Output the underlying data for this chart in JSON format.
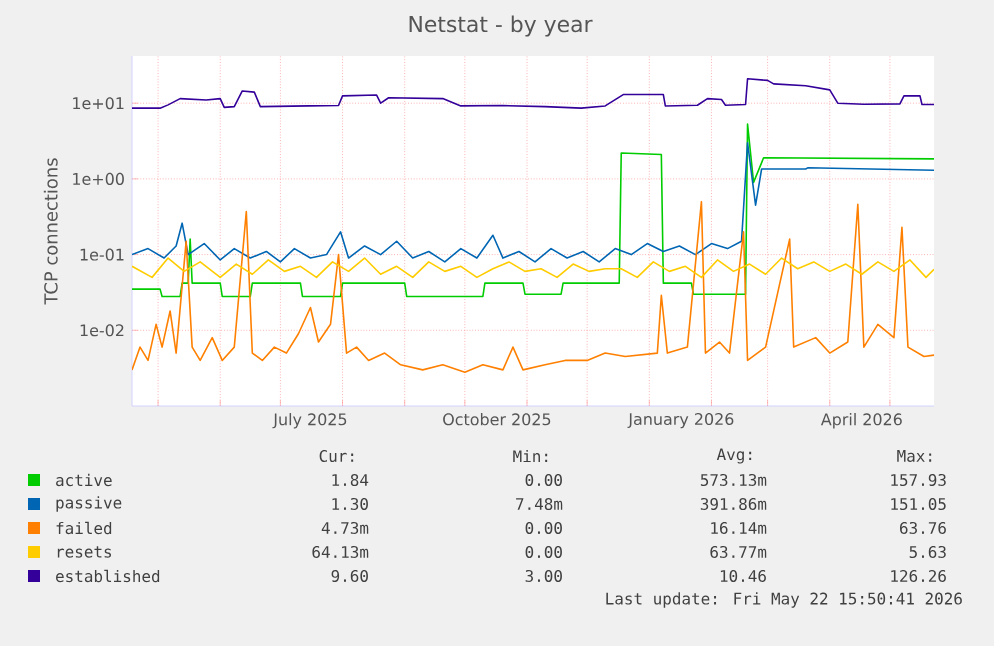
{
  "chart_data": {
    "type": "line",
    "title": "Netstat - by year",
    "ylabel": "TCP connections",
    "log": "y",
    "grid": true,
    "legend": "bottom",
    "xlim": [
      "2025-04-18",
      "2026-05-23"
    ],
    "xticks": [
      {
        "value": "2025-05-01",
        "label": null
      },
      {
        "value": "2025-06-01",
        "label": null
      },
      {
        "value": "2025-07-01",
        "label": null
      },
      {
        "value": "2025-08-01",
        "label": null
      },
      {
        "value": "2025-09-01",
        "label": null
      },
      {
        "value": "2025-10-01",
        "label": null
      },
      {
        "value": "2025-11-01",
        "label": null
      },
      {
        "value": "2025-12-01",
        "label": null
      },
      {
        "value": "2026-01-01",
        "label": null
      },
      {
        "value": "2026-02-01",
        "label": null
      },
      {
        "value": "2026-03-01",
        "label": null
      },
      {
        "value": "2026-04-01",
        "label": null
      },
      {
        "value": "2026-05-01",
        "label": null
      },
      {
        "value": "2025-07-16",
        "label": "July 2025"
      },
      {
        "value": "2025-10-17",
        "label": "October 2025"
      },
      {
        "value": "2026-01-17",
        "label": "January 2026"
      },
      {
        "value": "2026-04-17",
        "label": "April 2026"
      }
    ],
    "ylim": [
      0.001,
      42
    ],
    "yticks": [
      {
        "value": 0.01,
        "label": "1e-02"
      },
      {
        "value": 0.1,
        "label": "1e-01"
      },
      {
        "value": 1,
        "label": "1e+00"
      },
      {
        "value": 10,
        "label": "1e+01"
      }
    ],
    "series": [
      {
        "name": "active",
        "color": "#00cc00",
        "x": [
          "2025-04-18",
          "2025-05-02",
          "2025-05-03",
          "2025-05-12",
          "2025-05-13",
          "2025-05-16",
          "2025-05-17",
          "2025-05-18",
          "2025-06-01",
          "2025-06-02",
          "2025-06-16",
          "2025-06-17",
          "2025-07-11",
          "2025-07-12",
          "2025-07-31",
          "2025-08-01",
          "2025-09-01",
          "2025-09-02",
          "2025-10-10",
          "2025-10-11",
          "2025-10-30",
          "2025-10-31",
          "2025-11-18",
          "2025-11-19",
          "2025-12-17",
          "2025-12-18",
          "2026-01-07",
          "2026-01-08",
          "2026-01-22",
          "2026-01-23",
          "2026-02-18",
          "2026-02-19",
          "2026-02-22",
          "2026-02-27",
          "2026-05-23"
        ],
        "values": [
          0.035,
          0.035,
          0.028,
          0.028,
          0.042,
          0.042,
          0.16,
          0.042,
          0.042,
          0.028,
          0.028,
          0.042,
          0.042,
          0.028,
          0.028,
          0.042,
          0.042,
          0.028,
          0.028,
          0.042,
          0.042,
          0.03,
          0.03,
          0.042,
          0.042,
          2.2,
          2.1,
          0.042,
          0.042,
          0.03,
          0.03,
          5.3,
          0.9,
          1.9,
          1.84
        ]
      },
      {
        "name": "passive",
        "color": "#0066b3",
        "x": [
          "2025-04-18",
          "2025-04-26",
          "2025-05-04",
          "2025-05-10",
          "2025-05-13",
          "2025-05-16",
          "2025-05-24",
          "2025-06-01",
          "2025-06-08",
          "2025-06-16",
          "2025-06-24",
          "2025-07-01",
          "2025-07-08",
          "2025-07-16",
          "2025-07-24",
          "2025-07-31",
          "2025-08-04",
          "2025-08-12",
          "2025-08-20",
          "2025-08-28",
          "2025-09-05",
          "2025-09-13",
          "2025-09-21",
          "2025-09-29",
          "2025-10-07",
          "2025-10-15",
          "2025-10-20",
          "2025-10-28",
          "2025-11-05",
          "2025-11-13",
          "2025-11-21",
          "2025-11-29",
          "2025-12-07",
          "2025-12-15",
          "2025-12-23",
          "2025-12-31",
          "2026-01-08",
          "2026-01-16",
          "2026-01-24",
          "2026-02-01",
          "2026-02-09",
          "2026-02-16",
          "2026-02-19",
          "2026-02-23",
          "2026-02-26",
          "2026-03-20",
          "2026-03-21",
          "2026-05-23"
        ],
        "values": [
          0.1,
          0.12,
          0.09,
          0.13,
          0.26,
          0.1,
          0.14,
          0.085,
          0.12,
          0.09,
          0.11,
          0.08,
          0.12,
          0.09,
          0.1,
          0.2,
          0.09,
          0.13,
          0.1,
          0.15,
          0.09,
          0.11,
          0.08,
          0.12,
          0.09,
          0.18,
          0.09,
          0.11,
          0.08,
          0.12,
          0.09,
          0.11,
          0.08,
          0.12,
          0.1,
          0.14,
          0.11,
          0.13,
          0.1,
          0.14,
          0.12,
          0.15,
          3.0,
          0.45,
          1.35,
          1.35,
          1.4,
          1.3
        ]
      },
      {
        "name": "failed",
        "color": "#ff8000",
        "x": [
          "2025-04-18",
          "2025-04-22",
          "2025-04-26",
          "2025-04-30",
          "2025-05-03",
          "2025-05-07",
          "2025-05-10",
          "2025-05-15",
          "2025-05-18",
          "2025-05-22",
          "2025-05-28",
          "2025-06-02",
          "2025-06-08",
          "2025-06-14",
          "2025-06-17",
          "2025-06-22",
          "2025-06-28",
          "2025-07-04",
          "2025-07-10",
          "2025-07-16",
          "2025-07-20",
          "2025-07-26",
          "2025-07-30",
          "2025-08-03",
          "2025-08-08",
          "2025-08-14",
          "2025-08-22",
          "2025-08-30",
          "2025-09-10",
          "2025-09-20",
          "2025-10-01",
          "2025-10-10",
          "2025-10-20",
          "2025-10-25",
          "2025-10-30",
          "2025-11-10",
          "2025-11-20",
          "2025-12-01",
          "2025-12-10",
          "2025-12-20",
          "2026-01-05",
          "2026-01-07",
          "2026-01-10",
          "2026-01-20",
          "2026-01-27",
          "2026-01-29",
          "2026-02-05",
          "2026-02-10",
          "2026-02-17",
          "2026-02-19",
          "2026-02-28",
          "2026-03-12",
          "2026-03-14",
          "2026-03-25",
          "2026-04-01",
          "2026-04-10",
          "2026-04-15",
          "2026-04-18",
          "2026-04-25",
          "2026-05-03",
          "2026-05-07",
          "2026-05-10",
          "2026-05-18",
          "2026-05-23"
        ],
        "values": [
          0.003,
          0.006,
          0.004,
          0.012,
          0.006,
          0.018,
          0.005,
          0.15,
          0.006,
          0.004,
          0.008,
          0.004,
          0.006,
          0.37,
          0.005,
          0.004,
          0.006,
          0.005,
          0.009,
          0.02,
          0.007,
          0.012,
          0.1,
          0.005,
          0.006,
          0.004,
          0.005,
          0.0035,
          0.003,
          0.0035,
          0.0028,
          0.0035,
          0.003,
          0.006,
          0.003,
          0.0035,
          0.004,
          0.004,
          0.005,
          0.0045,
          0.005,
          0.029,
          0.005,
          0.006,
          0.5,
          0.005,
          0.007,
          0.005,
          0.2,
          0.004,
          0.006,
          0.16,
          0.006,
          0.008,
          0.005,
          0.007,
          0.46,
          0.006,
          0.012,
          0.008,
          0.23,
          0.006,
          0.0045,
          0.0047
        ]
      },
      {
        "name": "resets",
        "color": "#ffcc00",
        "x": [
          "2025-04-18",
          "2025-04-28",
          "2025-05-06",
          "2025-05-14",
          "2025-05-22",
          "2025-06-01",
          "2025-06-09",
          "2025-06-17",
          "2025-06-25",
          "2025-07-03",
          "2025-07-11",
          "2025-07-19",
          "2025-07-27",
          "2025-08-04",
          "2025-08-12",
          "2025-08-20",
          "2025-08-28",
          "2025-09-05",
          "2025-09-13",
          "2025-09-21",
          "2025-09-29",
          "2025-10-07",
          "2025-10-15",
          "2025-10-23",
          "2025-10-31",
          "2025-11-08",
          "2025-11-16",
          "2025-11-24",
          "2025-12-02",
          "2025-12-10",
          "2025-12-18",
          "2025-12-26",
          "2026-01-03",
          "2026-01-11",
          "2026-01-19",
          "2026-01-27",
          "2026-02-04",
          "2026-02-12",
          "2026-02-20",
          "2026-02-28",
          "2026-03-08",
          "2026-03-16",
          "2026-03-24",
          "2026-04-01",
          "2026-04-09",
          "2026-04-17",
          "2026-04-25",
          "2026-05-03",
          "2026-05-11",
          "2026-05-19",
          "2026-05-23"
        ],
        "values": [
          0.07,
          0.05,
          0.09,
          0.06,
          0.08,
          0.05,
          0.075,
          0.055,
          0.085,
          0.06,
          0.07,
          0.05,
          0.08,
          0.06,
          0.09,
          0.055,
          0.07,
          0.05,
          0.08,
          0.06,
          0.07,
          0.05,
          0.065,
          0.08,
          0.06,
          0.065,
          0.05,
          0.075,
          0.06,
          0.065,
          0.065,
          0.05,
          0.08,
          0.06,
          0.07,
          0.05,
          0.085,
          0.06,
          0.075,
          0.055,
          0.09,
          0.065,
          0.08,
          0.06,
          0.075,
          0.055,
          0.08,
          0.06,
          0.085,
          0.05,
          0.064
        ]
      },
      {
        "name": "established",
        "color": "#330099",
        "x": [
          "2025-04-18",
          "2025-05-02",
          "2025-05-06",
          "2025-05-12",
          "2025-05-25",
          "2025-06-01",
          "2025-06-03",
          "2025-06-08",
          "2025-06-12",
          "2025-06-18",
          "2025-06-21",
          "2025-07-15",
          "2025-07-30",
          "2025-08-01",
          "2025-08-18",
          "2025-08-20",
          "2025-08-24",
          "2025-09-20",
          "2025-09-29",
          "2025-10-20",
          "2025-11-10",
          "2025-11-28",
          "2025-12-10",
          "2025-12-19",
          "2026-01-08",
          "2026-01-09",
          "2026-01-25",
          "2026-01-30",
          "2026-02-06",
          "2026-02-08",
          "2026-02-18",
          "2026-02-19",
          "2026-03-01",
          "2026-03-04",
          "2026-03-20",
          "2026-04-01",
          "2026-04-05",
          "2026-04-18",
          "2026-05-06",
          "2026-05-08",
          "2026-05-16",
          "2026-05-17",
          "2026-05-23"
        ],
        "values": [
          8.6,
          8.6,
          9.5,
          11.5,
          11,
          11.5,
          8.8,
          9,
          14.5,
          14,
          9,
          9.2,
          9.3,
          12.5,
          12.8,
          10,
          11.8,
          11.5,
          9.2,
          9.3,
          9.0,
          8.6,
          9.2,
          13,
          13,
          9.2,
          9.4,
          11.5,
          11.2,
          9.4,
          9.6,
          21,
          20,
          18,
          17,
          15,
          10,
          9.7,
          9.8,
          12.5,
          12.5,
          9.6,
          9.6
        ]
      }
    ],
    "annotations": [
      "Cur:",
      "Min:",
      "Avg:",
      "Max:",
      "1.84",
      "0.00",
      "573.13m",
      "157.93",
      "1.30",
      "7.48m",
      "391.86m",
      "151.05",
      "4.73m",
      "0.00",
      "16.14m",
      "63.76",
      "64.13m",
      "0.00",
      "63.77m",
      "5.63",
      "9.60",
      "3.00",
      "10.46",
      "126.26",
      "Last update: Fri May 22 15:50:41 2026"
    ]
  }
}
